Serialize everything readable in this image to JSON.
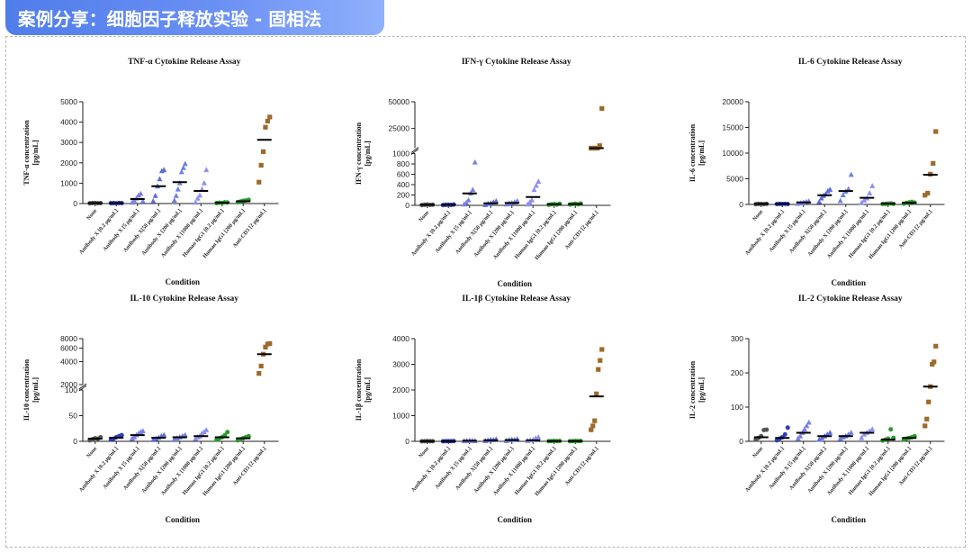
{
  "header": {
    "title": "案例分享：细胞因子释放实验 - 固相法"
  },
  "shared": {
    "categories": [
      "None",
      "Antibody X [0.2 µg/mL]",
      "Antibody X [5 µg/mL]",
      "Antibody X[50 µg/mL]",
      "Antibody X [200 µg/mL]",
      "Antibody X [1000 µg/mL]",
      "Human IgG1 [0.2 µg/mL]",
      "Human IgG1 [200 µg/mL]",
      "Anti-CD3 [2 µg/mL]"
    ],
    "group_colors": [
      "#555555",
      "#2e3db8",
      "#7b7fe8",
      "#5d6cd9",
      "#6f7fe0",
      "#8e8ff0",
      "#2a9a2a",
      "#2a9a2a",
      "#9c6a2a"
    ],
    "group_markers": [
      "circle",
      "circle",
      "triangle",
      "triangle",
      "triangle",
      "triangle",
      "circle",
      "circle",
      "square"
    ],
    "xlabel": "Condition"
  },
  "chart_data": [
    {
      "type": "scatter",
      "title": "TNF-α Cytokine Release Assay",
      "ylabel": "TNF-α concentration",
      "yunit": "[pg/mL]",
      "xlabel": "Condition",
      "ylim": [
        0,
        5000
      ],
      "yticks": [
        0,
        1000,
        2000,
        3000,
        4000,
        5000
      ],
      "medians": [
        20,
        20,
        220,
        850,
        1050,
        620,
        40,
        110,
        3130
      ],
      "values": [
        [
          10,
          20,
          25,
          15,
          20
        ],
        [
          15,
          20,
          10,
          25,
          20
        ],
        [
          50,
          150,
          250,
          400,
          480,
          120
        ],
        [
          120,
          380,
          850,
          1200,
          1600,
          1650
        ],
        [
          150,
          380,
          700,
          1000,
          1550,
          1750,
          1950
        ],
        [
          50,
          250,
          400,
          700,
          1000,
          1650
        ],
        [
          20,
          40,
          30,
          60,
          50
        ],
        [
          60,
          100,
          130,
          150,
          180
        ],
        [
          1050,
          1880,
          2550,
          3750,
          4050,
          4250
        ]
      ]
    },
    {
      "type": "scatter",
      "title": "IFN-γ Cytokine Release Assay",
      "ylabel": "IFN-γ concentration",
      "yunit": "[pg/mL]",
      "xlabel": "Condition",
      "ylim": [
        0,
        50000
      ],
      "axis_break": [
        1000,
        15000
      ],
      "yticks": [
        0,
        200,
        400,
        600,
        800,
        1000,
        25000,
        50000
      ],
      "medians": [
        10,
        10,
        230,
        40,
        45,
        160,
        20,
        25,
        15000
      ],
      "values": [
        [
          5,
          10,
          15,
          8,
          12
        ],
        [
          5,
          10,
          12,
          8,
          15
        ],
        [
          20,
          50,
          100,
          230,
          300,
          830
        ],
        [
          10,
          30,
          40,
          60,
          80
        ],
        [
          20,
          40,
          45,
          60,
          80
        ],
        [
          20,
          60,
          100,
          300,
          380,
          460
        ],
        [
          10,
          20,
          25,
          15,
          30
        ],
        [
          15,
          25,
          30,
          20,
          35
        ],
        [
          12000,
          13000,
          14000,
          15000,
          16000,
          42000
        ]
      ]
    },
    {
      "type": "scatter",
      "title": "IL-6 Cytokine Release Assay",
      "ylabel": "IL-6 concentration",
      "yunit": "[pg/mL]",
      "xlabel": "Condition",
      "ylim": [
        0,
        20000
      ],
      "yticks": [
        0,
        5000,
        10000,
        15000,
        20000
      ],
      "medians": [
        100,
        100,
        400,
        1800,
        2600,
        1300,
        150,
        300,
        5800
      ],
      "values": [
        [
          50,
          100,
          80,
          60,
          120
        ],
        [
          60,
          100,
          80,
          120,
          90
        ],
        [
          150,
          250,
          400,
          500,
          600
        ],
        [
          500,
          1200,
          1700,
          2000,
          2600,
          2900
        ],
        [
          700,
          1800,
          2500,
          3000,
          5800
        ],
        [
          300,
          800,
          1200,
          2200,
          3600
        ],
        [
          80,
          120,
          150,
          200,
          100
        ],
        [
          150,
          300,
          400,
          500,
          350
        ],
        [
          1800,
          2200,
          5900,
          8000,
          14200
        ]
      ]
    },
    {
      "type": "scatter",
      "title": "IL-10 Cytokine Release Assay",
      "ylabel": "IL-10 concentration",
      "yunit": "[pg/mL]",
      "xlabel": "Condition",
      "ylim": [
        0,
        8000
      ],
      "axis_break": [
        100,
        2000
      ],
      "yticks": [
        0,
        50,
        100,
        2000,
        4000,
        6000,
        8000
      ],
      "medians": [
        5,
        7,
        12,
        7,
        8,
        10,
        8,
        6,
        5000
      ],
      "values": [
        [
          2,
          4,
          6,
          5,
          8
        ],
        [
          3,
          5,
          8,
          10,
          12
        ],
        [
          5,
          8,
          12,
          15,
          18,
          20
        ],
        [
          3,
          5,
          7,
          10,
          12
        ],
        [
          4,
          6,
          8,
          10,
          12
        ],
        [
          5,
          8,
          10,
          15,
          18,
          22
        ],
        [
          3,
          6,
          8,
          12,
          18
        ],
        [
          2,
          4,
          6,
          8,
          10
        ],
        [
          2800,
          3500,
          5000,
          6200,
          6800,
          6900
        ]
      ]
    },
    {
      "type": "scatter",
      "title": "IL-1β Cytokine Release Assay",
      "ylabel": "IL-1β concentration",
      "yunit": "[pg/mL]",
      "xlabel": "Condition",
      "ylim": [
        0,
        4000
      ],
      "yticks": [
        0,
        1000,
        2000,
        3000,
        4000
      ],
      "medians": [
        5,
        5,
        20,
        40,
        50,
        40,
        10,
        10,
        1750
      ],
      "values": [
        [
          2,
          5,
          8,
          4,
          6
        ],
        [
          2,
          4,
          6,
          5,
          8
        ],
        [
          10,
          20,
          30,
          25,
          15
        ],
        [
          20,
          40,
          60,
          50,
          80
        ],
        [
          20,
          50,
          70,
          60,
          90
        ],
        [
          20,
          40,
          60,
          120,
          160
        ],
        [
          5,
          10,
          15,
          8,
          12
        ],
        [
          5,
          10,
          15,
          8,
          12
        ],
        [
          450,
          600,
          800,
          1850,
          2800,
          3150,
          3580
        ]
      ]
    },
    {
      "type": "scatter",
      "title": "IL-2 Cytokine Release Assay",
      "ylabel": "IL-2 concentration",
      "yunit": "[pg/mL]",
      "xlabel": "Condition",
      "ylim": [
        0,
        300
      ],
      "yticks": [
        0,
        100,
        200,
        300
      ],
      "medians": [
        12,
        10,
        25,
        15,
        15,
        25,
        5,
        10,
        160
      ],
      "values": [
        [
          5,
          10,
          15,
          33,
          34
        ],
        [
          3,
          8,
          12,
          20,
          40
        ],
        [
          8,
          15,
          25,
          35,
          45,
          55
        ],
        [
          5,
          10,
          15,
          20,
          25
        ],
        [
          8,
          12,
          15,
          20,
          25
        ],
        [
          10,
          20,
          25,
          30,
          35
        ],
        [
          2,
          5,
          8,
          35,
          10
        ],
        [
          5,
          8,
          10,
          12,
          15
        ],
        [
          45,
          65,
          115,
          160,
          225,
          232,
          278
        ]
      ]
    }
  ]
}
